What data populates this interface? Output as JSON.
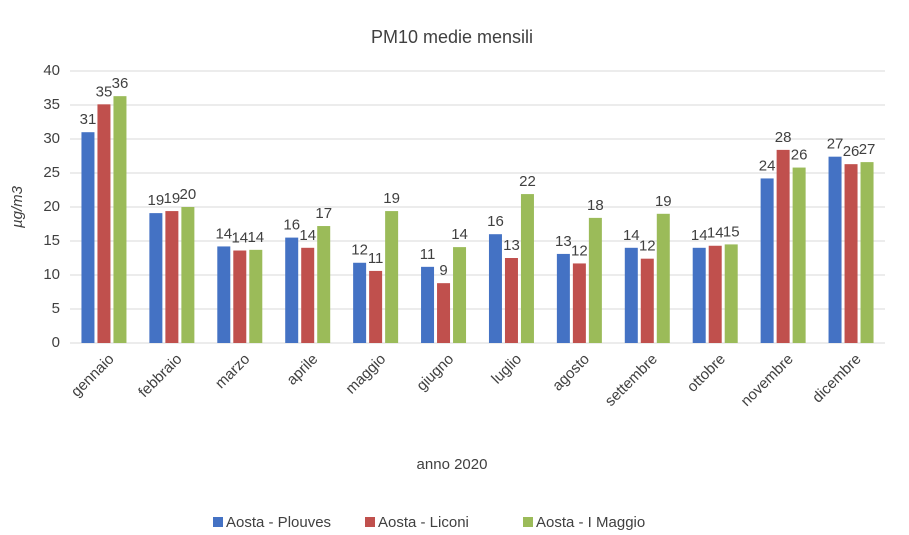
{
  "chart_data": {
    "type": "bar",
    "title": "PM10 medie mensili",
    "xlabel": "anno 2020",
    "ylabel": "µg/m3",
    "categories": [
      "gennaio",
      "febbraio",
      "marzo",
      "aprile",
      "maggio",
      "giugno",
      "luglio",
      "agosto",
      "settembre",
      "ottobre",
      "novembre",
      "dicembre"
    ],
    "series": [
      {
        "name": "Aosta - Plouves",
        "color": "#4472c4",
        "values": [
          31.0,
          19.1,
          14.2,
          15.5,
          11.8,
          11.2,
          16.0,
          13.1,
          14.0,
          14.0,
          24.2,
          27.4
        ],
        "value_labels": [
          "31",
          "19",
          "14",
          "16",
          "12",
          "11",
          "16",
          "13",
          "14",
          "14",
          "24",
          "27"
        ]
      },
      {
        "name": "Aosta - Liconi",
        "color": "#c0504d",
        "values": [
          35.1,
          19.4,
          13.6,
          14.0,
          10.6,
          8.8,
          12.5,
          11.7,
          12.4,
          14.3,
          28.4,
          26.3
        ],
        "value_labels": [
          "35",
          "19",
          "14",
          "14",
          "11",
          "9",
          "13",
          "12",
          "12",
          "14",
          "28",
          "26"
        ]
      },
      {
        "name": "Aosta - I Maggio",
        "color": "#9bbb59",
        "values": [
          36.3,
          20.0,
          13.7,
          17.2,
          19.4,
          14.1,
          21.9,
          18.4,
          19.0,
          14.5,
          25.8,
          26.6
        ],
        "value_labels": [
          "36",
          "20",
          "14",
          "17",
          "19",
          "14",
          "22",
          "18",
          "19",
          "15",
          "26",
          "27"
        ]
      }
    ],
    "ylim": [
      0,
      40
    ],
    "yticks": [
      0,
      5,
      10,
      15,
      20,
      25,
      30,
      35,
      40
    ],
    "grid": true,
    "legend": "bottom"
  }
}
